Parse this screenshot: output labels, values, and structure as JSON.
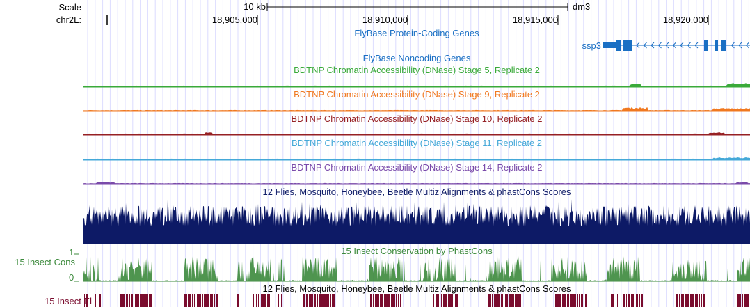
{
  "header": {
    "scale_label": "Scale",
    "scale_bar_label": "10 kb",
    "assembly": "dm3",
    "chrom_label": "chr2L:",
    "positions": [
      "18,905,000",
      "18,910,000",
      "18,915,000",
      "18,920,000"
    ]
  },
  "tracks": {
    "flybase_coding": {
      "title": "FlyBase Protein-Coding Genes",
      "color": "#1a6fc4",
      "gene": "ssp3"
    },
    "flybase_noncoding": {
      "title": "FlyBase Noncoding Genes",
      "color": "#1a6fc4"
    },
    "dnase_s5": {
      "title": "BDTNP Chromatin Accessibility (DNase) Stage 5, Replicate 2",
      "color": "#3aaa3a"
    },
    "dnase_s9": {
      "title": "BDTNP Chromatin Accessibility (DNase) Stage 9, Replicate 2",
      "color": "#f07820"
    },
    "dnase_s10": {
      "title": "BDTNP Chromatin Accessibility (DNase) Stage 10, Replicate 2",
      "color": "#962024"
    },
    "dnase_s11": {
      "title": "BDTNP Chromatin Accessibility (DNase) Stage 11, Replicate 2",
      "color": "#44a8d8"
    },
    "dnase_s14": {
      "title": "BDTNP Chromatin Accessibility (DNase) Stage 14, Replicate 2",
      "color": "#7a4aaa"
    },
    "multiz": {
      "title": "12 Flies, Mosquito, Honeybee, Beetle Multiz Alignments & phastCons Scores",
      "color": "#0d1a66"
    },
    "phastcons": {
      "title": "15 Insect Conservation by PhastCons",
      "side_label": "15 Insect Cons",
      "y_max": "1",
      "y_min": "0",
      "color": "#3c8a3c"
    },
    "elements": {
      "title": "12 Flies, Mosquito, Honeybee, Beetle Multiz Alignments & phastCons Scores",
      "side_label": "15 Insect El",
      "color": "#7a0c2e"
    }
  }
}
